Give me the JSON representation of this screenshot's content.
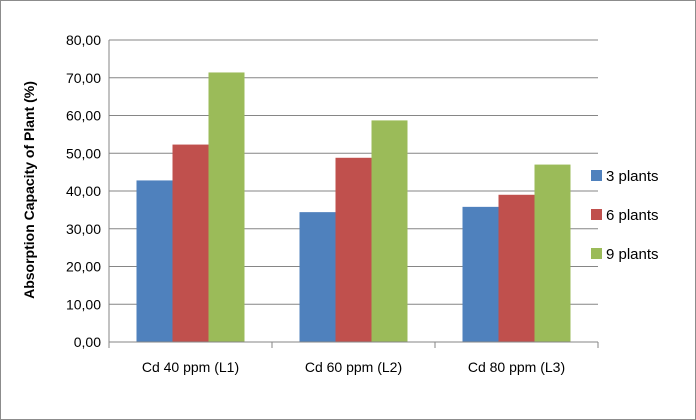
{
  "chart_data": {
    "type": "bar",
    "categories": [
      "Cd 40 ppm (L1)",
      "Cd 60 ppm (L2)",
      "Cd 80 ppm (L3)"
    ],
    "series": [
      {
        "name": "3 plants",
        "values": [
          42.8,
          34.4,
          35.8
        ],
        "color": "#4f81bd"
      },
      {
        "name": "6 plants",
        "values": [
          52.3,
          48.8,
          39.0
        ],
        "color": "#c0504d"
      },
      {
        "name": "9 plants",
        "values": [
          71.4,
          58.7,
          47.0
        ],
        "color": "#9bbb59"
      }
    ],
    "title": "",
    "xlabel": "",
    "ylabel": "Absorption Capacity of Plant (%)",
    "ylim": [
      0,
      80
    ],
    "yticks": [
      "0,00",
      "10,00",
      "20,00",
      "30,00",
      "40,00",
      "50,00",
      "60,00",
      "70,00",
      "80,00"
    ],
    "grid": true,
    "legend_position": "right"
  }
}
